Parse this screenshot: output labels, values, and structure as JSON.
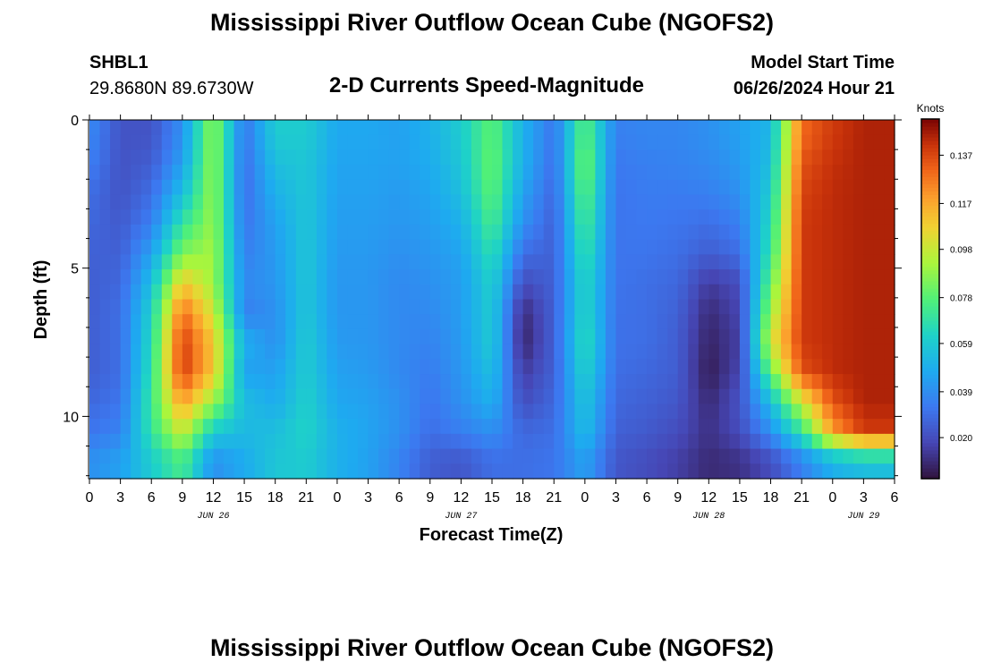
{
  "header": {
    "title": "Mississippi River Outflow Ocean Cube (NGOFS2)",
    "station_id": "SHBL1",
    "station_coords": "29.8680N  89.6730W",
    "subtitle": "2-D Currents Speed-Magnitude",
    "model_label": "Model Start Time",
    "model_time": "06/26/2024 Hour 21"
  },
  "footer": {
    "title": "Mississippi River Outflow Ocean Cube (NGOFS2)"
  },
  "chart_data": {
    "type": "heatmap",
    "title": "2-D Currents Speed-Magnitude",
    "xlabel": "Forecast Time(Z)",
    "ylabel": "Depth (ft)",
    "x_range_hours": [
      0,
      78
    ],
    "x_start_hour_utc": 0,
    "y_range_ft": [
      0,
      12.1
    ],
    "y_inverted": true,
    "x_tick_labels": [
      "0",
      "3",
      "6",
      "9",
      "12",
      "15",
      "18",
      "21",
      "0",
      "3",
      "6",
      "9",
      "12",
      "15",
      "18",
      "21",
      "0",
      "3",
      "6",
      "9",
      "12",
      "15",
      "18",
      "21",
      "0",
      "3",
      "6"
    ],
    "y_tick_values": [
      0,
      5,
      10
    ],
    "y_tick_labels": [
      "0",
      "5",
      "10"
    ],
    "date_labels": [
      {
        "label": "JUN 26",
        "hour": 12
      },
      {
        "label": "JUN 27",
        "hour": 36
      },
      {
        "label": "JUN 28",
        "hour": 60
      },
      {
        "label": "JUN 29",
        "hour": 75
      }
    ],
    "colorbar": {
      "title": "Knots",
      "tick_values": [
        0.137,
        0.117,
        0.098,
        0.078,
        0.059,
        0.039,
        0.02
      ],
      "tick_labels": [
        "0.137",
        "0.117",
        "0.098",
        "0.078",
        "0.059",
        "0.039",
        "0.020"
      ],
      "vmin": 0.003,
      "vmax": 0.152,
      "colormap": "turbo"
    },
    "depth_levels_ft": [
      0.5,
      1.5,
      2.5,
      3.5,
      4.5,
      5.5,
      6.5,
      7.5,
      8.5,
      9.5,
      10.5,
      11.5
    ],
    "grid": {
      "x_hours": [
        0,
        3,
        6,
        9,
        12,
        15,
        18,
        21,
        24,
        27,
        30,
        33,
        36,
        39,
        42,
        45,
        48,
        51,
        54,
        57,
        60,
        63,
        66,
        69,
        72,
        75,
        78
      ],
      "values": [
        [
          0.038,
          0.022,
          0.022,
          0.04,
          0.09,
          0.032,
          0.06,
          0.06,
          0.047,
          0.047,
          0.045,
          0.05,
          0.06,
          0.08,
          0.05,
          0.032,
          0.08,
          0.035,
          0.037,
          0.037,
          0.04,
          0.045,
          0.052,
          0.13,
          0.14,
          0.145,
          0.145
        ],
        [
          0.035,
          0.022,
          0.025,
          0.045,
          0.09,
          0.03,
          0.055,
          0.058,
          0.046,
          0.046,
          0.045,
          0.048,
          0.058,
          0.082,
          0.05,
          0.03,
          0.085,
          0.033,
          0.035,
          0.036,
          0.038,
          0.043,
          0.055,
          0.135,
          0.142,
          0.145,
          0.145
        ],
        [
          0.03,
          0.022,
          0.03,
          0.055,
          0.09,
          0.03,
          0.05,
          0.058,
          0.045,
          0.045,
          0.043,
          0.046,
          0.055,
          0.08,
          0.045,
          0.028,
          0.08,
          0.032,
          0.034,
          0.034,
          0.035,
          0.04,
          0.06,
          0.138,
          0.143,
          0.145,
          0.145
        ],
        [
          0.028,
          0.024,
          0.035,
          0.07,
          0.09,
          0.032,
          0.045,
          0.058,
          0.044,
          0.044,
          0.042,
          0.044,
          0.05,
          0.075,
          0.04,
          0.026,
          0.075,
          0.032,
          0.033,
          0.032,
          0.03,
          0.035,
          0.065,
          0.14,
          0.143,
          0.145,
          0.145
        ],
        [
          0.026,
          0.026,
          0.045,
          0.085,
          0.092,
          0.035,
          0.043,
          0.058,
          0.043,
          0.043,
          0.04,
          0.042,
          0.046,
          0.068,
          0.03,
          0.026,
          0.07,
          0.032,
          0.032,
          0.03,
          0.025,
          0.03,
          0.07,
          0.14,
          0.143,
          0.145,
          0.145
        ],
        [
          0.025,
          0.028,
          0.055,
          0.11,
          0.09,
          0.038,
          0.042,
          0.058,
          0.042,
          0.042,
          0.038,
          0.04,
          0.044,
          0.062,
          0.02,
          0.026,
          0.065,
          0.032,
          0.03,
          0.028,
          0.015,
          0.02,
          0.08,
          0.14,
          0.143,
          0.145,
          0.145
        ],
        [
          0.025,
          0.03,
          0.062,
          0.13,
          0.1,
          0.035,
          0.04,
          0.058,
          0.042,
          0.042,
          0.038,
          0.038,
          0.044,
          0.06,
          0.01,
          0.026,
          0.065,
          0.031,
          0.03,
          0.026,
          0.01,
          0.018,
          0.09,
          0.14,
          0.143,
          0.145,
          0.145
        ],
        [
          0.025,
          0.03,
          0.065,
          0.14,
          0.11,
          0.05,
          0.04,
          0.06,
          0.043,
          0.042,
          0.038,
          0.036,
          0.043,
          0.06,
          0.008,
          0.026,
          0.068,
          0.031,
          0.03,
          0.025,
          0.008,
          0.016,
          0.1,
          0.14,
          0.143,
          0.145,
          0.145
        ],
        [
          0.025,
          0.03,
          0.068,
          0.14,
          0.11,
          0.045,
          0.045,
          0.06,
          0.045,
          0.043,
          0.038,
          0.034,
          0.042,
          0.055,
          0.015,
          0.026,
          0.063,
          0.03,
          0.028,
          0.025,
          0.006,
          0.018,
          0.08,
          0.135,
          0.143,
          0.145,
          0.145
        ],
        [
          0.028,
          0.032,
          0.072,
          0.12,
          0.09,
          0.055,
          0.048,
          0.062,
          0.047,
          0.045,
          0.04,
          0.032,
          0.04,
          0.05,
          0.02,
          0.028,
          0.058,
          0.028,
          0.026,
          0.023,
          0.01,
          0.022,
          0.055,
          0.1,
          0.135,
          0.145,
          0.145
        ],
        [
          0.032,
          0.036,
          0.07,
          0.1,
          0.06,
          0.053,
          0.055,
          0.063,
          0.05,
          0.046,
          0.04,
          0.03,
          0.035,
          0.04,
          0.028,
          0.03,
          0.055,
          0.026,
          0.024,
          0.02,
          0.012,
          0.02,
          0.04,
          0.07,
          0.12,
          0.14,
          0.14
        ],
        [
          0.04,
          0.045,
          0.06,
          0.075,
          0.04,
          0.048,
          0.058,
          0.06,
          0.05,
          0.045,
          0.036,
          0.025,
          0.023,
          0.03,
          0.03,
          0.032,
          0.045,
          0.023,
          0.02,
          0.016,
          0.01,
          0.012,
          0.02,
          0.035,
          0.05,
          0.055,
          0.055
        ]
      ]
    }
  }
}
